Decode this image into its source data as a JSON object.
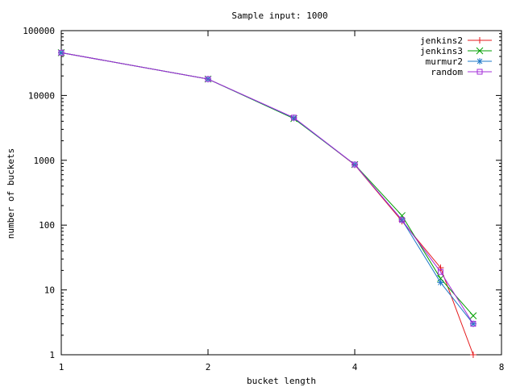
{
  "chart_data": {
    "type": "line",
    "title": "Sample input: 1000",
    "xlabel": "bucket length",
    "ylabel": "number of buckets",
    "x_scale": "log2",
    "y_scale": "log10",
    "xlim": [
      1,
      8
    ],
    "ylim": [
      1,
      100000
    ],
    "x_ticks": [
      "1",
      "2",
      "4",
      "8"
    ],
    "y_ticks": [
      "1",
      "10",
      "100",
      "1000",
      "10000",
      "100000"
    ],
    "legend_position": "top-right",
    "grid": false,
    "series": [
      {
        "name": "jenkins2",
        "color": "#e41a1c",
        "marker": "plus",
        "x": [
          1,
          2,
          3,
          4,
          5,
          6,
          7
        ],
        "y": [
          45700,
          17900,
          4500,
          850,
          115,
          22,
          1
        ]
      },
      {
        "name": "jenkins3",
        "color": "#009e00",
        "marker": "cross",
        "x": [
          1,
          2,
          3,
          4,
          5,
          6,
          7
        ],
        "y": [
          45700,
          17900,
          4400,
          860,
          140,
          15,
          4
        ]
      },
      {
        "name": "murmur2",
        "color": "#1e78c8",
        "marker": "star",
        "x": [
          1,
          2,
          3,
          4,
          5,
          6,
          7
        ],
        "y": [
          45700,
          17900,
          4500,
          860,
          120,
          13,
          3
        ]
      },
      {
        "name": "random",
        "color": "#a32cd8",
        "marker": "square",
        "x": [
          1,
          2,
          3,
          4,
          5,
          6,
          7
        ],
        "y": [
          45700,
          17900,
          4550,
          860,
          120,
          19,
          3
        ]
      }
    ]
  }
}
